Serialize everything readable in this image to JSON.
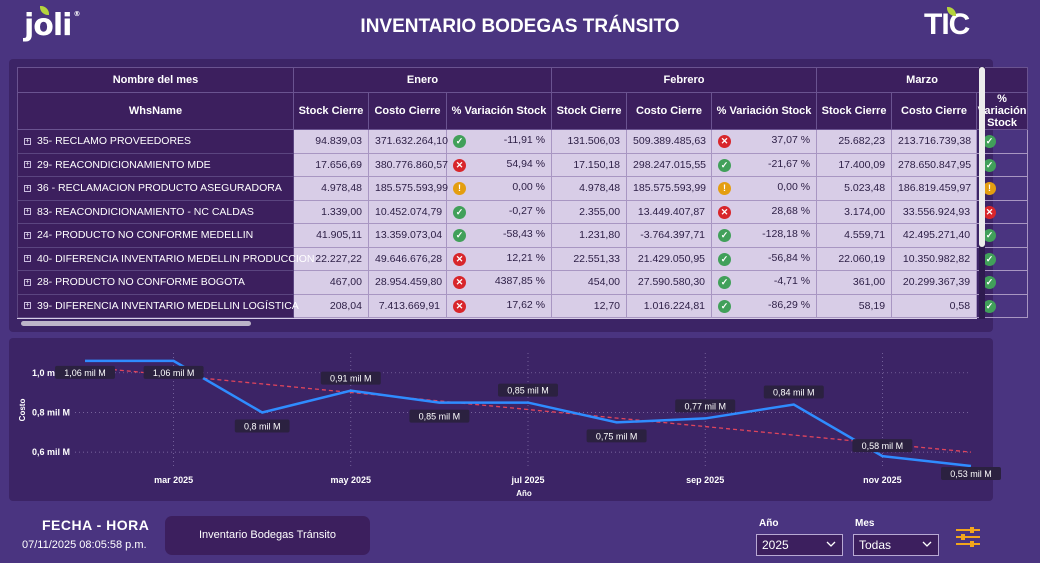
{
  "header": {
    "title": "INVENTARIO BODEGAS TRÁNSITO",
    "logo_left": "joli",
    "logo_left_mark": "®",
    "logo_right": "TIC"
  },
  "table": {
    "corner_top": "Nombre del mes",
    "corner_bottom": "WhsName",
    "months": [
      "Enero",
      "Febrero",
      "Marzo"
    ],
    "columns": [
      "Stock Cierre",
      "Costo Cierre",
      "% Variación Stock"
    ],
    "rows": [
      {
        "name": "35- RECLAMO PROVEEDORES",
        "cells": [
          [
            "94.839,03",
            "371.632.264,10",
            "up",
            "-11,91 %"
          ],
          [
            "131.506,03",
            "509.389.485,63",
            "down",
            "37,07 %"
          ],
          [
            "25.682,23",
            "213.716.739,38",
            "up"
          ]
        ]
      },
      {
        "name": "29- REACONDICIONAMIENTO MDE",
        "cells": [
          [
            "17.656,69",
            "380.776.860,57",
            "down",
            "54,94 %"
          ],
          [
            "17.150,18",
            "298.247.015,55",
            "up",
            "-21,67 %"
          ],
          [
            "17.400,09",
            "278.650.847,95",
            "up"
          ]
        ]
      },
      {
        "name": "36 - RECLAMACION PRODUCTO ASEGURADORA",
        "cells": [
          [
            "4.978,48",
            "185.575.593,99",
            "eq",
            "0,00 %"
          ],
          [
            "4.978,48",
            "185.575.593,99",
            "eq",
            "0,00 %"
          ],
          [
            "5.023,48",
            "186.819.459,97",
            "eq"
          ]
        ]
      },
      {
        "name": "83- REACONDICIONAMIENTO - NC CALDAS",
        "cells": [
          [
            "1.339,00",
            "10.452.074,79",
            "up",
            "-0,27 %"
          ],
          [
            "2.355,00",
            "13.449.407,87",
            "down",
            "28,68 %"
          ],
          [
            "3.174,00",
            "33.556.924,93",
            "down"
          ]
        ]
      },
      {
        "name": "24- PRODUCTO NO CONFORME MEDELLIN",
        "cells": [
          [
            "41.905,11",
            "13.359.073,04",
            "up",
            "-58,43 %"
          ],
          [
            "1.231,80",
            "-3.764.397,71",
            "up",
            "-128,18 %"
          ],
          [
            "4.559,71",
            "42.495.271,40",
            "up"
          ]
        ]
      },
      {
        "name": "40- DIFERENCIA INVENTARIO MEDELLIN PRODUCCION",
        "cells": [
          [
            "22.227,22",
            "49.646.676,28",
            "down",
            "12,21 %"
          ],
          [
            "22.551,33",
            "21.429.050,95",
            "up",
            "-56,84 %"
          ],
          [
            "22.060,19",
            "10.350.982,82",
            "up"
          ]
        ]
      },
      {
        "name": "28- PRODUCTO NO CONFORME BOGOTA",
        "cells": [
          [
            "467,00",
            "28.954.459,80",
            "down",
            "4387,85 %"
          ],
          [
            "454,00",
            "27.590.580,30",
            "up",
            "-4,71 %"
          ],
          [
            "361,00",
            "20.299.367,39",
            "up"
          ]
        ]
      },
      {
        "name": "39- DIFERENCIA INVENTARIO MEDELLIN LOGÍSTICA",
        "cells": [
          [
            "208,04",
            "7.413.669,91",
            "down",
            "17,62 %"
          ],
          [
            "12,70",
            "1.016.224,81",
            "up",
            "-86,29 %"
          ],
          [
            "58,19",
            "0,58",
            "up"
          ]
        ]
      }
    ]
  },
  "chart_data": {
    "type": "line",
    "xlabel": "Año",
    "ylabel": "Costo",
    "x": [
      "2025-02",
      "2025-03",
      "2025-04",
      "2025-05",
      "2025-06",
      "2025-07",
      "2025-08",
      "2025-09",
      "2025-10",
      "2025-11",
      "2025-12"
    ],
    "x_ticks": [
      "mar 2025",
      "may 2025",
      "jul 2025",
      "sep 2025",
      "nov 2025"
    ],
    "y_ticks": [
      "1,0 mil M",
      "0,8 mil M",
      "0,6 mil M"
    ],
    "y_tick_values": [
      1.0,
      0.8,
      0.6
    ],
    "ylim": [
      0.52,
      1.1
    ],
    "series": [
      {
        "values": [
          1.06,
          1.06,
          0.8,
          0.91,
          0.85,
          0.85,
          0.75,
          0.77,
          0.84,
          0.58,
          0.53
        ],
        "labels": [
          "1,06 mil M",
          "1,06 mil M",
          "0,8 mil M",
          "0,91 mil M",
          "0,85 mil M",
          "0,85 mil M",
          "0,75 mil M",
          "0,77 mil M",
          "0,84 mil M",
          "0,58 mil M",
          "0,53 mil M"
        ],
        "color": "#2f8cff"
      }
    ],
    "trend": {
      "start": 1.03,
      "end": 0.6,
      "color": "#e0455c"
    },
    "grid": true
  },
  "footer": {
    "fecha_label": "FECHA - HORA",
    "fecha_value": "07/11/2025 08:05:58 p.m.",
    "report_button": "Inventario Bodegas Tránsito",
    "anio_label": "Año",
    "anio_value": "2025",
    "mes_label": "Mes",
    "mes_value": "Todas"
  }
}
